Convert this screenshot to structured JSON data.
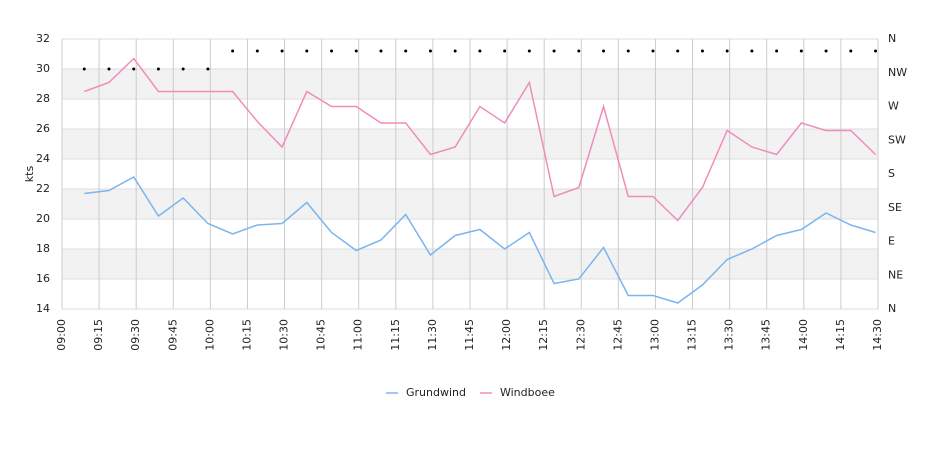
{
  "chart_data": {
    "type": "line",
    "ylabel": "kts",
    "x": [
      "09:09",
      "09:19",
      "09:29",
      "09:39",
      "09:49",
      "09:59",
      "10:09",
      "10:19",
      "10:29",
      "10:39",
      "10:49",
      "10:59",
      "11:09",
      "11:19",
      "11:29",
      "11:39",
      "11:49",
      "11:59",
      "12:09",
      "12:19",
      "12:29",
      "12:39",
      "12:49",
      "12:59",
      "13:09",
      "13:19",
      "13:29",
      "13:39",
      "13:49",
      "13:59",
      "14:09",
      "14:19",
      "14:29"
    ],
    "xlim": [
      "09:00",
      "14:30"
    ],
    "xticks": [
      "09:00",
      "09:15",
      "09:30",
      "09:45",
      "10:00",
      "10:15",
      "10:30",
      "10:45",
      "11:00",
      "11:15",
      "11:30",
      "11:45",
      "12:00",
      "12:15",
      "12:30",
      "12:45",
      "13:00",
      "13:15",
      "13:30",
      "13:45",
      "14:00",
      "14:15",
      "14:30"
    ],
    "ylim": [
      14,
      32
    ],
    "yticks": [
      14,
      16,
      18,
      20,
      22,
      24,
      26,
      28,
      30,
      32
    ],
    "y2lim": [
      0,
      360
    ],
    "y2ticks": [
      {
        "value": 0,
        "label": "N"
      },
      {
        "value": 45,
        "label": "NE"
      },
      {
        "value": 90,
        "label": "E"
      },
      {
        "value": 135,
        "label": "SE"
      },
      {
        "value": 180,
        "label": "S"
      },
      {
        "value": 225,
        "label": "SW"
      },
      {
        "value": 270,
        "label": "W"
      },
      {
        "value": 315,
        "label": "NW"
      },
      {
        "value": 360,
        "label": "N"
      }
    ],
    "grid": true,
    "legend": "bottom",
    "series": [
      {
        "name": "Grundwind",
        "color": "#7ab6ee",
        "values": [
          21.7,
          21.9,
          22.8,
          20.2,
          21.4,
          19.7,
          19.0,
          19.6,
          19.7,
          21.1,
          19.1,
          17.9,
          18.6,
          20.3,
          17.6,
          18.9,
          19.3,
          18.0,
          19.1,
          15.7,
          16.0,
          18.1,
          14.9,
          14.9,
          14.4,
          15.6,
          17.3,
          18.0,
          18.9,
          19.3,
          20.4,
          19.6,
          19.1
        ]
      },
      {
        "name": "Windboee",
        "color": "#f08cbc",
        "values": [
          28.5,
          29.1,
          30.7,
          28.5,
          28.5,
          28.5,
          28.5,
          26.5,
          24.8,
          28.5,
          27.5,
          27.5,
          26.4,
          26.4,
          24.3,
          24.8,
          27.5,
          26.4,
          29.1,
          21.5,
          22.1,
          27.5,
          21.5,
          21.5,
          19.9,
          22.1,
          25.9,
          24.8,
          24.3,
          26.4,
          25.9,
          25.9,
          24.3
        ]
      }
    ],
    "direction": {
      "axis": "y2",
      "color": "#000000",
      "values": [
        320,
        320,
        320,
        320,
        320,
        320,
        344,
        344,
        344,
        344,
        344,
        344,
        344,
        344,
        344,
        344,
        344,
        344,
        344,
        344,
        344,
        344,
        344,
        344,
        344,
        344,
        344,
        344,
        344,
        344,
        344,
        344,
        344
      ]
    }
  }
}
